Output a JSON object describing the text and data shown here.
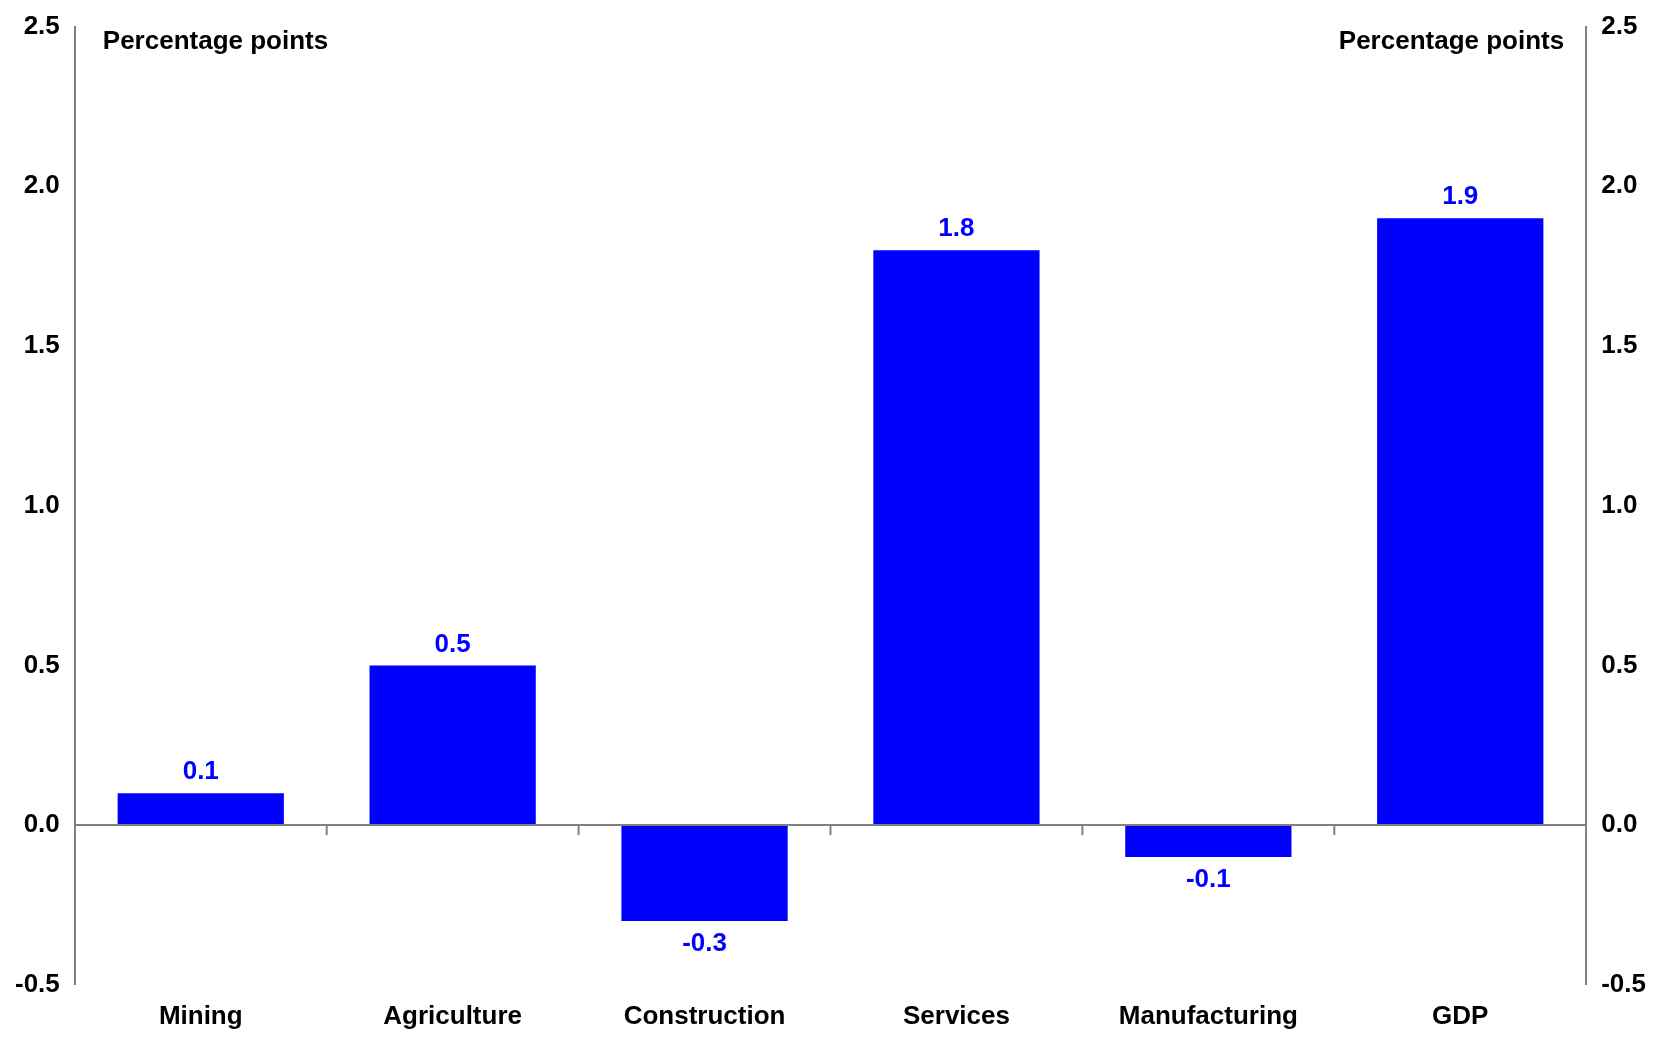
{
  "chart_data": {
    "type": "bar",
    "ylabel": "Percentage points",
    "y2label": "Percentage points",
    "categories": [
      "Mining",
      "Agriculture",
      "Construction",
      "Services",
      "Manufacturing",
      "GDP"
    ],
    "series": [
      {
        "color": "#0000ff",
        "values": [
          0.1,
          0.5,
          -0.3,
          1.8,
          -0.1,
          1.9
        ]
      }
    ],
    "ylim": [
      -0.5,
      2.5
    ],
    "yticks": [
      {
        "value": -0.5,
        "label": "-0.5"
      },
      {
        "value": 0,
        "label": "0.0"
      },
      {
        "value": 0.5,
        "label": "0.5"
      },
      {
        "value": 1,
        "label": "1.0"
      },
      {
        "value": 1.5,
        "label": "1.5"
      },
      {
        "value": 2,
        "label": "2.0"
      },
      {
        "value": 2.5,
        "label": "2.5"
      }
    ],
    "y2lim": [
      -0.5,
      2.5
    ],
    "y2ticks": [
      {
        "value": -0.5,
        "label": "-0.5"
      },
      {
        "value": 0,
        "label": "0.0"
      },
      {
        "value": 0.5,
        "label": "0.5"
      },
      {
        "value": 1,
        "label": "1.0"
      },
      {
        "value": 1.5,
        "label": "1.5"
      },
      {
        "value": 2,
        "label": "2.0"
      },
      {
        "value": 2.5,
        "label": "2.5"
      }
    ],
    "data_labels": true
  }
}
